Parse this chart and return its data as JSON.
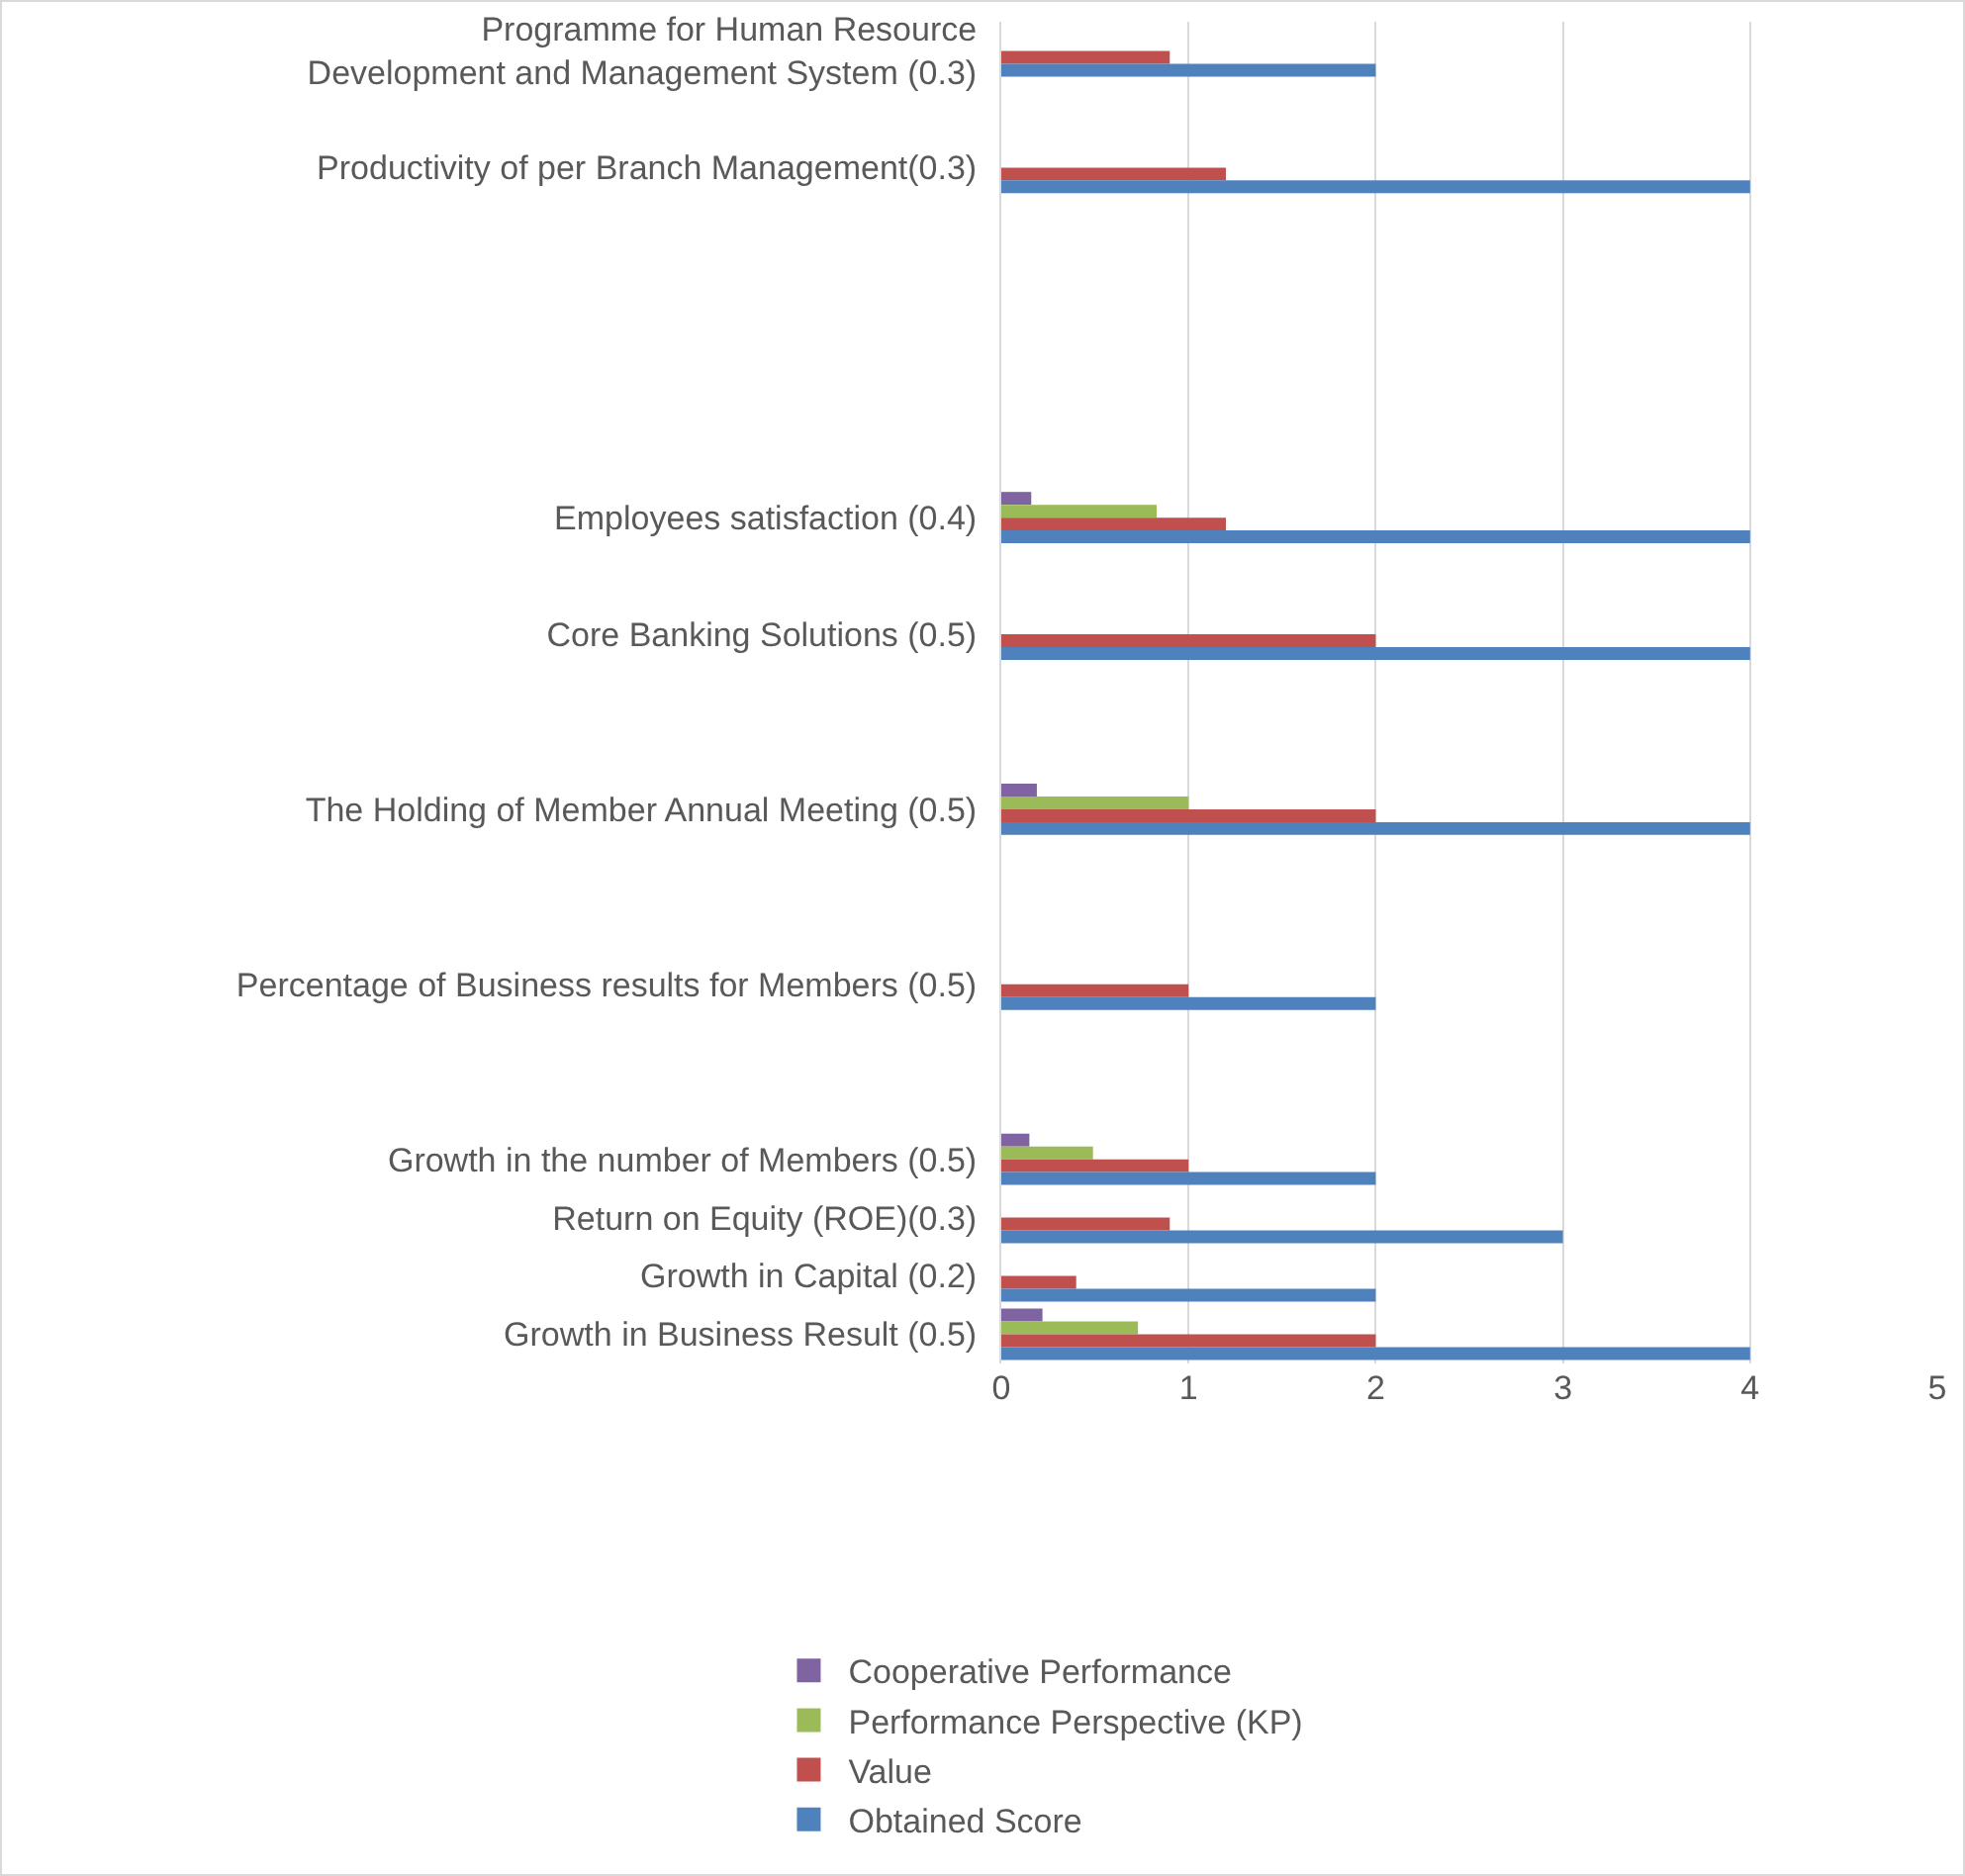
{
  "chart_data": {
    "type": "bar",
    "orientation": "horizontal",
    "categories": [
      "Programme for Human Resource Development and Management System (0.3)",
      null,
      "Productivity of per Branch Management(0.3)",
      null,
      null,
      null,
      null,
      null,
      "Employees satisfaction (0.4)",
      null,
      "Core Banking Solutions (0.5)",
      null,
      null,
      "The Holding of Member Annual Meeting (0.5)",
      null,
      null,
      "Percentage of Business results for Members (0.5)",
      null,
      null,
      "Growth in the number of Members (0.5)",
      "Return on Equity (ROE)(0.3)",
      "Growth in Capital (0.2)",
      "Growth in Business Result (0.5)"
    ],
    "series": [
      {
        "name": "Cooperative Performance",
        "color": "#8064a2",
        "values": [
          null,
          null,
          null,
          null,
          null,
          null,
          null,
          null,
          0.16,
          null,
          null,
          null,
          null,
          0.19,
          null,
          null,
          null,
          null,
          null,
          0.15,
          null,
          null,
          0.22
        ]
      },
      {
        "name": "Performance Perspective (KP)",
        "color": "#9bbb59",
        "values": [
          null,
          null,
          null,
          null,
          null,
          null,
          null,
          null,
          0.83,
          null,
          null,
          null,
          null,
          1,
          null,
          null,
          null,
          null,
          null,
          0.49,
          null,
          null,
          0.73
        ]
      },
      {
        "name": "Value",
        "color": "#c0504d",
        "values": [
          0.9,
          null,
          1.2,
          null,
          null,
          null,
          null,
          null,
          1.2,
          null,
          2,
          null,
          null,
          2,
          null,
          null,
          1,
          null,
          null,
          1,
          0.9,
          0.4,
          2
        ]
      },
      {
        "name": "Obtained Score",
        "color": "#4f81bd",
        "values": [
          2,
          null,
          4,
          null,
          null,
          null,
          null,
          null,
          4,
          null,
          4,
          null,
          null,
          4,
          null,
          null,
          2,
          null,
          null,
          2,
          3,
          2,
          4
        ]
      }
    ],
    "xlim": [
      0,
      5
    ],
    "xticks": [
      0,
      1,
      2,
      3,
      4,
      5
    ],
    "grid": "x",
    "legend": "bottom"
  }
}
